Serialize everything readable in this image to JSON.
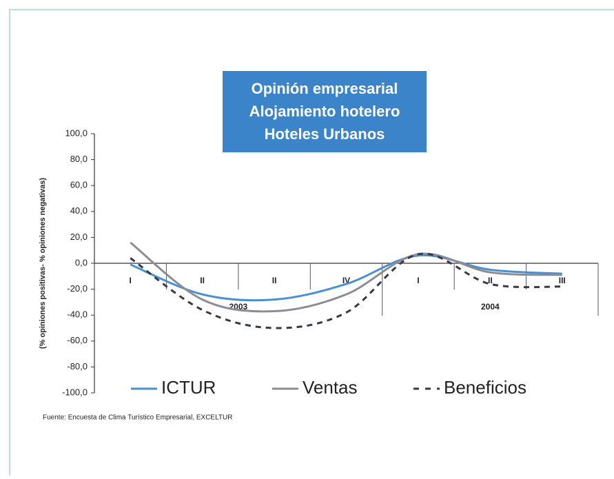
{
  "chart_data": {
    "type": "line",
    "title": [
      "Opinión empresarial",
      "Alojamiento hotelero",
      "Hoteles Urbanos"
    ],
    "y_label": "(% opiniones positivas- % opiniones negativas)",
    "categories": [
      "I",
      "II",
      "II",
      "IV",
      "I",
      "II",
      "III"
    ],
    "groups": [
      "2003",
      "2004"
    ],
    "series": [
      {
        "name": "ICTUR",
        "color": "#4a90d0",
        "values": [
          -1,
          -24,
          -28,
          -16,
          6,
          -5,
          -8
        ]
      },
      {
        "name": "Ventas",
        "color": "#8c8c94",
        "values": [
          16,
          -28,
          -37,
          -24,
          7,
          -7,
          -9
        ]
      },
      {
        "name": "Beneficios",
        "color": "#333a44",
        "dashed": true,
        "values": [
          4,
          -36,
          -50,
          -38,
          7,
          -16,
          -18
        ]
      }
    ],
    "ylim": [
      -100,
      100
    ],
    "yticks": [
      {
        "value": -100,
        "label": "-100,0"
      },
      {
        "value": -80,
        "label": "-80,0"
      },
      {
        "value": -60,
        "label": "-60,0"
      },
      {
        "value": -40,
        "label": "-40,0"
      },
      {
        "value": -20,
        "label": "-20,0"
      },
      {
        "value": 0,
        "label": "0,0"
      },
      {
        "value": 20,
        "label": "20,0"
      },
      {
        "value": 40,
        "label": "40,0"
      },
      {
        "value": 60,
        "label": "60,0"
      },
      {
        "value": 80,
        "label": "80,0"
      },
      {
        "value": 100,
        "label": "100,0"
      }
    ],
    "source": "Fuente: Encuesta de Clima Turístico Empresarial, EXCELTUR"
  }
}
